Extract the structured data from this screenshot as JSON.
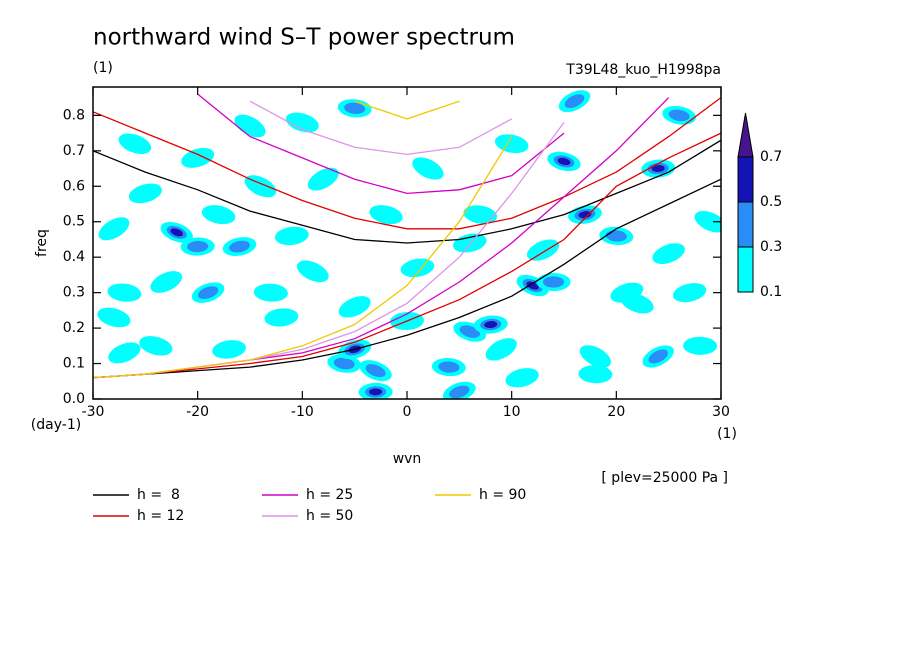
{
  "chart_data": {
    "type": "line",
    "title": "northward wind S–T power spectrum",
    "subtitle_left": "(1)",
    "subtitle_right": "T39L48_kuo_H1998pa",
    "xlabel": "wvn",
    "xunit": "(1)",
    "ylabel": "freq",
    "yunit": "(day-1)",
    "annotation": "[ plev=25000 Pa ]",
    "xlim": [
      -30,
      30
    ],
    "ylim": [
      0,
      0.88
    ],
    "xticks": [
      -30,
      -20,
      -10,
      0,
      10,
      20,
      30
    ],
    "yticks": [
      {
        "value": 0,
        "label": "0.0"
      },
      0.1,
      0.2,
      0.3,
      0.4,
      0.5,
      0.6,
      0.7,
      0.8
    ],
    "x": [
      -30,
      -25,
      -20,
      -15,
      -10,
      -5,
      0,
      5,
      10,
      15,
      20,
      25,
      30
    ],
    "series": [
      {
        "name": "h =  8",
        "color": "#000000",
        "branches": [
          [
            0.06,
            0.07,
            0.08,
            0.09,
            0.11,
            0.14,
            0.18,
            0.23,
            0.29,
            0.38,
            0.48,
            0.55,
            0.62
          ],
          [
            0.7,
            0.64,
            0.59,
            0.53,
            0.49,
            0.45,
            0.44,
            0.45,
            0.48,
            0.52,
            0.58,
            0.64,
            0.73
          ]
        ]
      },
      {
        "name": "h = 12",
        "color": "#e00000",
        "branches": [
          [
            0.06,
            0.07,
            0.085,
            0.1,
            0.12,
            0.16,
            0.22,
            0.28,
            0.36,
            0.45,
            0.6,
            0.68,
            0.75
          ],
          [
            0.81,
            0.75,
            0.69,
            0.62,
            0.56,
            0.51,
            0.48,
            0.48,
            0.51,
            0.57,
            0.64,
            0.74,
            0.85
          ]
        ]
      },
      {
        "name": "h = 25",
        "color": "#d200c8",
        "branches": [
          [
            0.06,
            0.07,
            0.09,
            0.11,
            0.13,
            0.17,
            0.24,
            0.33,
            0.44,
            0.57,
            0.7,
            0.85,
            null
          ],
          [
            null,
            null,
            0.86,
            0.74,
            0.68,
            0.62,
            0.58,
            0.59,
            0.63,
            0.75,
            null,
            null,
            null
          ]
        ]
      },
      {
        "name": "h = 50",
        "color": "#dc96e6",
        "branches": [
          [
            0.06,
            0.07,
            0.09,
            0.11,
            0.14,
            0.19,
            0.27,
            0.4,
            0.58,
            0.78,
            null,
            null,
            null
          ],
          [
            null,
            null,
            null,
            0.84,
            0.76,
            0.71,
            0.69,
            0.71,
            0.79,
            null,
            null,
            null,
            null
          ]
        ]
      },
      {
        "name": "h = 90",
        "color": "#f0c800",
        "branches": [
          [
            0.06,
            0.07,
            0.09,
            0.11,
            0.15,
            0.21,
            0.32,
            0.5,
            0.74,
            null,
            null,
            null,
            null
          ],
          [
            null,
            null,
            null,
            null,
            null,
            0.84,
            0.79,
            0.84,
            null,
            null,
            null,
            null,
            null
          ]
        ]
      }
    ],
    "colorbar": {
      "levels": [
        0.1,
        0.3,
        0.5,
        0.7
      ],
      "colors": [
        "#00ffff",
        "#2a8cf5",
        "#1414b4",
        "#46148c"
      ]
    },
    "patches": {
      "x": [
        -28,
        -27,
        -25,
        -22,
        -20,
        -23,
        -18,
        -16,
        -14,
        -13,
        -19,
        -10,
        -12,
        -8,
        -6,
        -5,
        -3,
        -3,
        -5,
        -2,
        1,
        2,
        4,
        5,
        6,
        8,
        9,
        7,
        11,
        12,
        14,
        13,
        15,
        17,
        18,
        20,
        21,
        22,
        24,
        24,
        26,
        27,
        29,
        28,
        -27,
        -24,
        -17,
        -15,
        -5,
        -20,
        -26,
        0,
        16,
        10,
        6,
        -9,
        18,
        25,
        -28,
        -11
      ],
      "y": [
        0.48,
        0.3,
        0.58,
        0.47,
        0.43,
        0.33,
        0.52,
        0.43,
        0.6,
        0.3,
        0.3,
        0.78,
        0.23,
        0.62,
        0.1,
        0.14,
        0.08,
        0.02,
        0.26,
        0.52,
        0.37,
        0.65,
        0.09,
        0.02,
        0.19,
        0.21,
        0.14,
        0.52,
        0.06,
        0.32,
        0.33,
        0.42,
        0.67,
        0.52,
        0.12,
        0.46,
        0.3,
        0.27,
        0.65,
        0.12,
        0.8,
        0.3,
        0.5,
        0.15,
        0.13,
        0.15,
        0.14,
        0.77,
        0.82,
        0.68,
        0.72,
        0.22,
        0.84,
        0.72,
        0.44,
        0.36,
        0.07,
        0.41,
        0.23,
        0.46
      ],
      "level": [
        0.1,
        0.1,
        0.1,
        0.5,
        0.3,
        0.1,
        0.1,
        0.3,
        0.1,
        0.1,
        0.3,
        0.1,
        0.1,
        0.1,
        0.3,
        0.5,
        0.3,
        0.5,
        0.1,
        0.1,
        0.1,
        0.1,
        0.3,
        0.3,
        0.3,
        0.5,
        0.1,
        0.1,
        0.1,
        0.5,
        0.3,
        0.1,
        0.5,
        0.5,
        0.1,
        0.3,
        0.1,
        0.1,
        0.5,
        0.3,
        0.3,
        0.1,
        0.1,
        0.1,
        0.1,
        0.1,
        0.1,
        0.1,
        0.3,
        0.1,
        0.1,
        0.1,
        0.3,
        0.1,
        0.1,
        0.1,
        0.1,
        0.1,
        0.1,
        0.1
      ]
    }
  }
}
